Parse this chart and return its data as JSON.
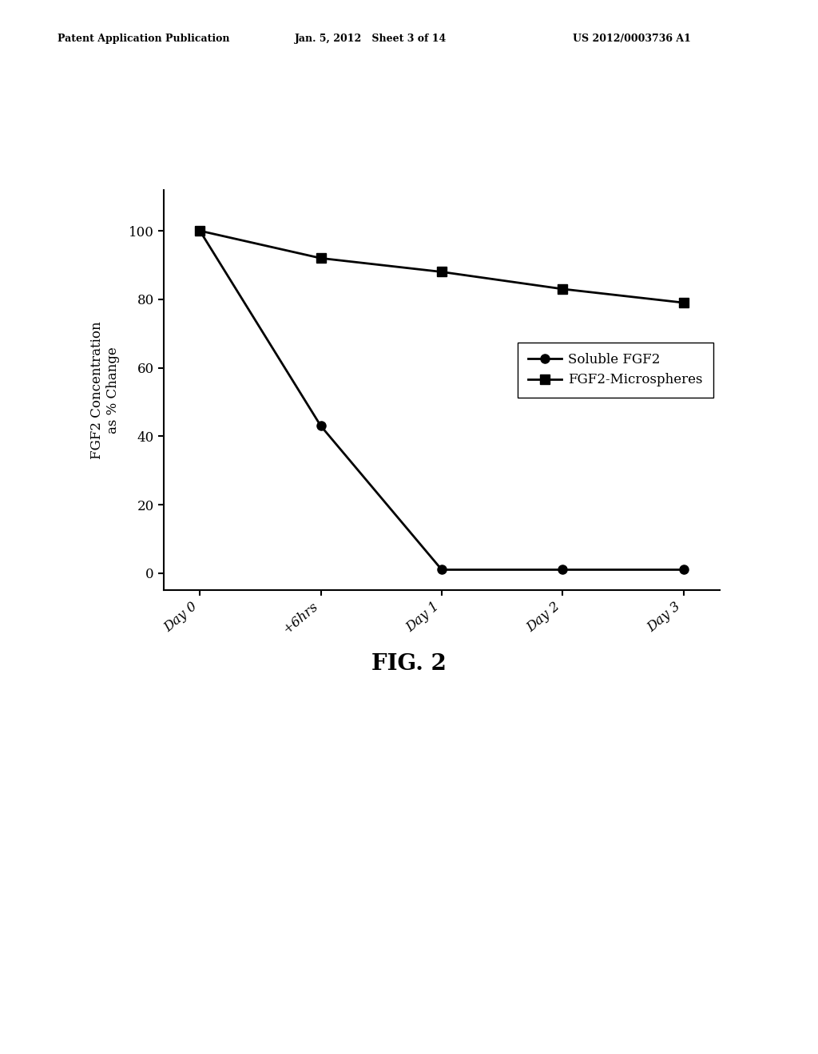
{
  "header_left": "Patent Application Publication",
  "header_mid": "Jan. 5, 2012   Sheet 3 of 14",
  "header_right": "US 2012/0003736 A1",
  "fig_caption": "FIG. 2",
  "x_labels": [
    "Day 0",
    "+6hrs",
    "Day 1",
    "Day 2",
    "Day 3"
  ],
  "x_values": [
    0,
    1,
    2,
    3,
    4
  ],
  "soluble_fgf2": [
    100,
    43,
    1,
    1,
    1
  ],
  "microspheres": [
    100,
    92,
    88,
    83,
    79
  ],
  "ylabel": "FGF2 Concentration\nas % Change",
  "ylim": [
    -5,
    112
  ],
  "yticks": [
    0,
    20,
    40,
    60,
    80,
    100
  ],
  "legend_soluble": "Soluble FGF2",
  "legend_micro": "FGF2-Microspheres",
  "line_color": "#000000",
  "background_color": "#ffffff",
  "axis_fontsize": 12,
  "tick_fontsize": 12,
  "legend_fontsize": 12,
  "header_fontsize": 9,
  "caption_fontsize": 20
}
